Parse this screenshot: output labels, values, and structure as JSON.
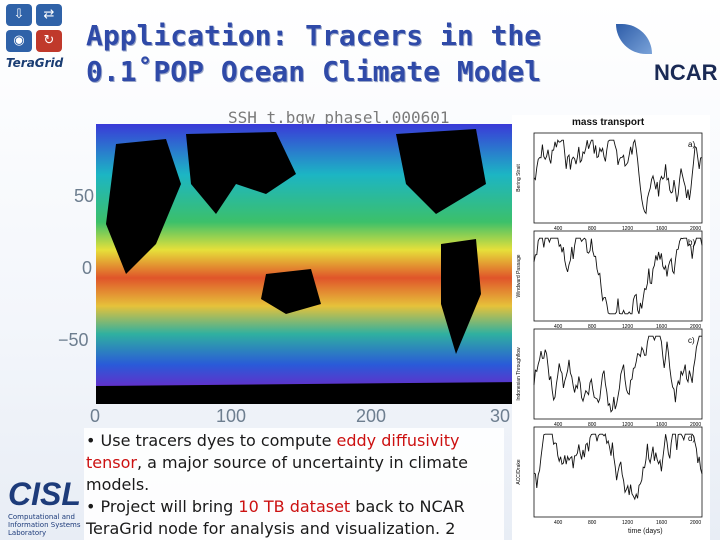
{
  "logos": {
    "teragrid": "TeraGrid",
    "ncar": "NCAR",
    "cisl": "CISL",
    "cisl_sub": "Computational and Information Systems Laboratory"
  },
  "slide": {
    "title_line1": "Application: Tracers in the",
    "title_line2": "0.1˚POP Ocean Climate Model"
  },
  "ssh_map": {
    "label": "SSH   t.bgw_phasel.000601",
    "y_ticks": [
      "50",
      "0",
      "−50"
    ],
    "x_ticks": [
      "0",
      "100",
      "200",
      "30"
    ]
  },
  "mass_transport": {
    "title": "mass transport",
    "panels": [
      {
        "tag": "a)",
        "ylabel": "Bering Strait"
      },
      {
        "tag": "b)",
        "ylabel": "Windward Passage"
      },
      {
        "tag": "c)",
        "ylabel": "Indonesian Throughflow"
      },
      {
        "tag": "d)",
        "ylabel": "ACC/Drake"
      }
    ],
    "x_ticks": [
      "400",
      "800",
      "1200",
      "1600",
      "2000"
    ],
    "xlabel": "time (days)"
  },
  "bullets": {
    "b1_pre": "• Use tracers dyes to compute ",
    "b1_hl": "eddy diffusivity tensor",
    "b1_post": ", a major source of uncertainty in climate models.",
    "b2_pre": "• Project will bring ",
    "b2_hl": "10 TB dataset",
    "b2_post": " back to NCAR TeraGrid node for analysis and visualization.",
    "page_num": "2"
  }
}
